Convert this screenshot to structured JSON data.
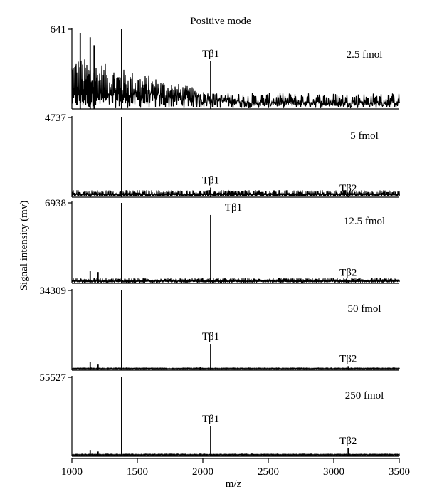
{
  "chart_data": {
    "type": "line",
    "title": "Positive mode",
    "xlabel": "m/z",
    "ylabel": "Signal intensity (mv)",
    "xlim": [
      1000,
      3500
    ],
    "x_ticks": [
      "1000",
      "1500",
      "2000",
      "2500",
      "3000",
      "3500"
    ],
    "peak_label_1": "Tβ1",
    "peak_label_2": "Tβ2",
    "panels": [
      {
        "name": "2.5 fmol",
        "ymax_label": "641",
        "noise": 0.55,
        "peaks": [
          {
            "x": 1064,
            "y": 0.95
          },
          {
            "x": 1140,
            "y": 0.9
          },
          {
            "x": 1170,
            "y": 0.8
          },
          {
            "x": 1380,
            "y": 1.0
          },
          {
            "x": 2060,
            "y": 0.6,
            "label": "Tβ1"
          }
        ]
      },
      {
        "name": "5 fmol",
        "ymax_label": "4737",
        "noise": 0.06,
        "peaks": [
          {
            "x": 1140,
            "y": 0.05
          },
          {
            "x": 1380,
            "y": 1.0
          },
          {
            "x": 2060,
            "y": 0.12,
            "label": "Tβ1"
          },
          {
            "x": 3110,
            "y": 0.02,
            "label": "Tβ2"
          }
        ]
      },
      {
        "name": "12.5 fmol",
        "ymax_label": "6938",
        "noise": 0.04,
        "peaks": [
          {
            "x": 1140,
            "y": 0.15
          },
          {
            "x": 1200,
            "y": 0.14
          },
          {
            "x": 1380,
            "y": 1.0
          },
          {
            "x": 2060,
            "y": 0.85,
            "label": "Tβ1"
          },
          {
            "x": 3110,
            "y": 0.04,
            "label": "Tβ2"
          }
        ]
      },
      {
        "name": "50 fmol",
        "ymax_label": "34309",
        "noise": 0.01,
        "peaks": [
          {
            "x": 1140,
            "y": 0.1
          },
          {
            "x": 1200,
            "y": 0.07
          },
          {
            "x": 1380,
            "y": 1.0
          },
          {
            "x": 1980,
            "y": 0.04
          },
          {
            "x": 2060,
            "y": 0.33,
            "label": "Tβ1"
          },
          {
            "x": 3110,
            "y": 0.05,
            "label": "Tβ2"
          }
        ]
      },
      {
        "name": "250 fmol",
        "ymax_label": "55527",
        "noise": 0.01,
        "peaks": [
          {
            "x": 1140,
            "y": 0.08
          },
          {
            "x": 1200,
            "y": 0.06
          },
          {
            "x": 1380,
            "y": 1.0
          },
          {
            "x": 1980,
            "y": 0.03
          },
          {
            "x": 2060,
            "y": 0.38,
            "label": "Tβ1"
          },
          {
            "x": 3110,
            "y": 0.1,
            "label": "Tβ2"
          }
        ]
      }
    ]
  }
}
